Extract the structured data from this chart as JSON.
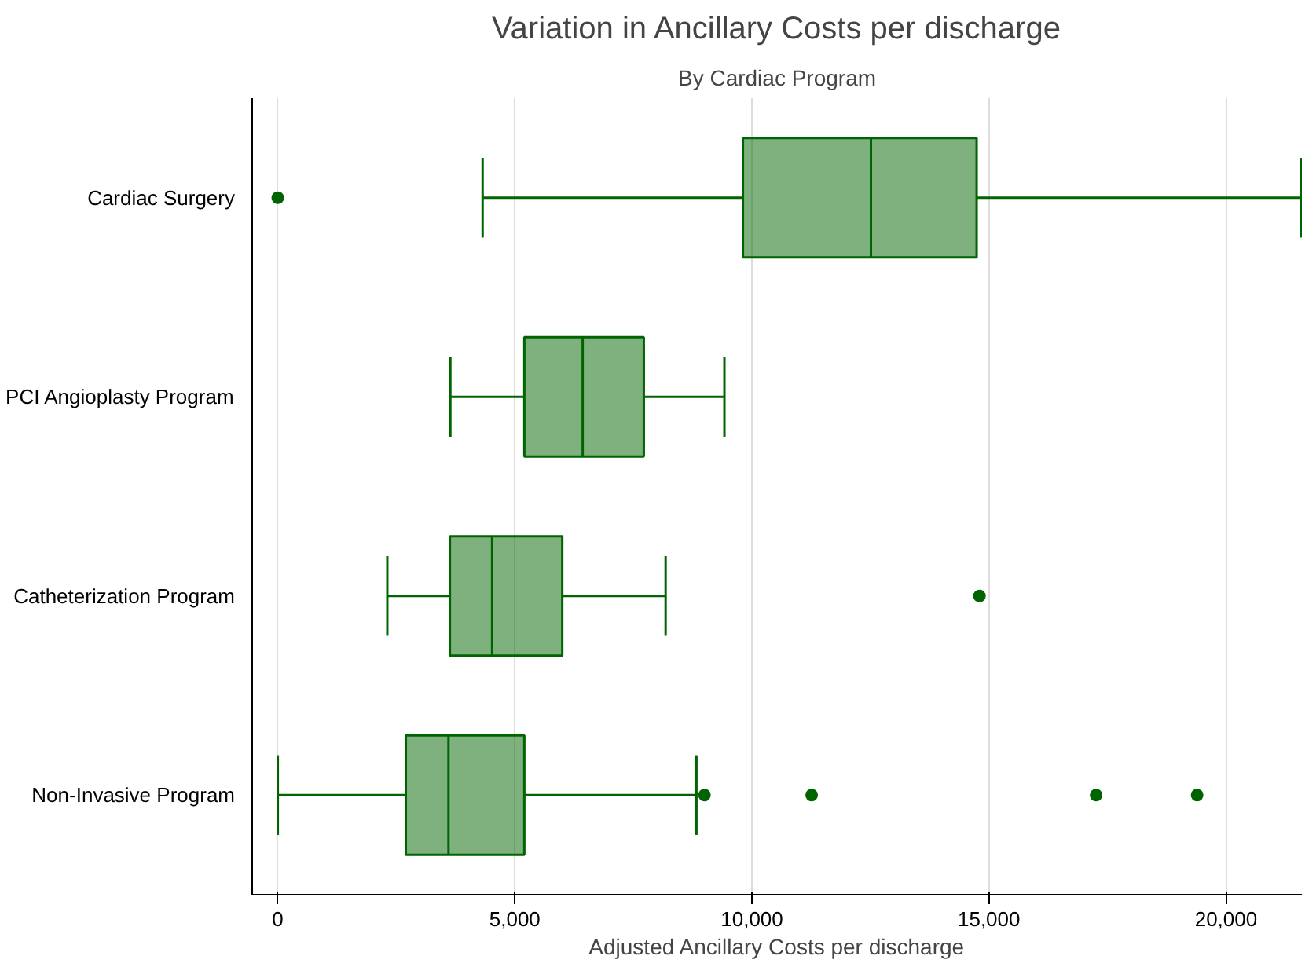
{
  "chart_data": {
    "type": "box",
    "title": "Variation in Ancillary Costs per discharge",
    "subtitle": "By Cardiac Program",
    "xlabel": "Adjusted Ancillary Costs per discharge",
    "orientation": "horizontal",
    "categories": [
      "Cardiac Surgery",
      "PCI Angioplasty Program",
      "Catheterization Program",
      "Non-Invasive Program"
    ],
    "series": [
      {
        "color": "#006400",
        "boxes": [
          {
            "low": 4320,
            "q1": 9810,
            "median": 12510,
            "q3": 14740,
            "high": 21580,
            "outliers": [
              0
            ]
          },
          {
            "low": 3640,
            "q1": 5200,
            "median": 6430,
            "q3": 7720,
            "high": 9420
          },
          {
            "low": 2310,
            "q1": 3630,
            "median": 4520,
            "q3": 6000,
            "high": 8180,
            "outliers": [
              14800
            ]
          },
          {
            "low": 0,
            "q1": 2700,
            "median": 3600,
            "q3": 5200,
            "high": 8830,
            "outliers": [
              9000,
              11260,
              17260,
              19390
            ]
          }
        ]
      }
    ],
    "xlim": [
      -540,
      21600
    ],
    "xticks": [
      0,
      {
        "value": 5000,
        "label": "5,000"
      },
      {
        "value": 10000,
        "label": "10,000"
      },
      {
        "value": 15000,
        "label": "15,000"
      },
      {
        "value": 20000,
        "label": "20,000"
      }
    ],
    "grid": "x"
  }
}
